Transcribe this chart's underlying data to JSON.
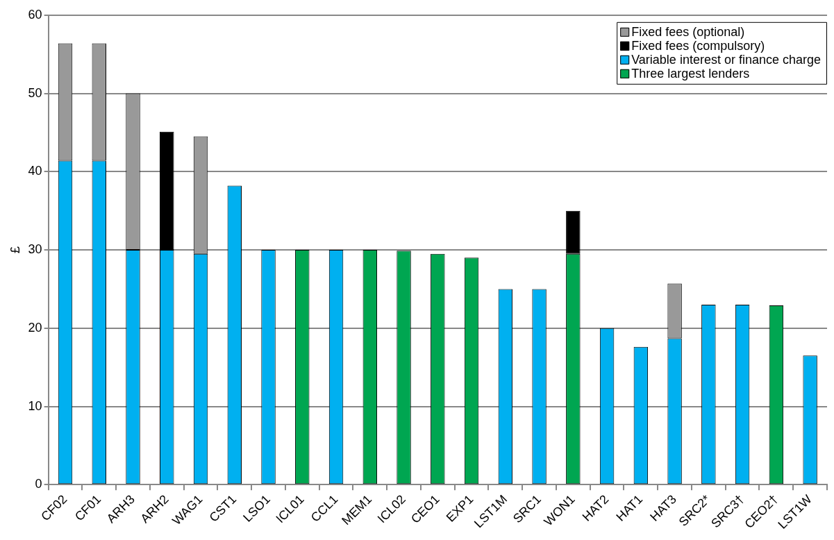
{
  "chart_data": {
    "type": "bar",
    "ylabel": "£",
    "stacked": true,
    "categories": [
      "CF02",
      "CF01",
      "ARH3",
      "ARH2",
      "WAG1",
      "CST1",
      "LSO1",
      "ICL01",
      "CCL1",
      "MEM1",
      "ICL02",
      "CEO1",
      "EXP1",
      "LST1M",
      "SRC1",
      "WON1",
      "HAT2",
      "HAT1",
      "HAT3",
      "SRC2*",
      "SRC3†",
      "CEO2†",
      "LST1W"
    ],
    "series": [
      {
        "name": "Three largest lenders",
        "color": "#00a651",
        "values": [
          null,
          null,
          null,
          null,
          null,
          null,
          null,
          30,
          null,
          30,
          29.9,
          29.5,
          29,
          null,
          null,
          29.5,
          null,
          null,
          null,
          null,
          null,
          22.9,
          null
        ]
      },
      {
        "name": "Variable interest or finance charge",
        "color": "#00b0f0",
        "values": [
          41.4,
          41.4,
          30,
          30,
          29.5,
          38.2,
          30,
          null,
          30,
          null,
          null,
          null,
          null,
          25,
          25,
          null,
          20,
          17.6,
          18.7,
          23,
          23,
          null,
          16.5
        ]
      },
      {
        "name": "Fixed fees (compulsory)",
        "color": "#000000",
        "values": [
          null,
          null,
          null,
          15.1,
          null,
          null,
          null,
          null,
          null,
          null,
          null,
          null,
          null,
          null,
          null,
          5.5,
          null,
          null,
          null,
          null,
          null,
          null,
          null
        ]
      },
      {
        "name": "Fixed fees (optional)",
        "color": "#999999",
        "values": [
          15,
          15,
          20,
          null,
          15,
          null,
          null,
          null,
          null,
          null,
          null,
          null,
          null,
          null,
          null,
          null,
          null,
          null,
          7,
          null,
          null,
          null,
          null
        ]
      }
    ],
    "ylim": [
      0,
      60
    ],
    "yticks": [
      0,
      10,
      20,
      30,
      40,
      50,
      60
    ],
    "grid": "y",
    "legend": "top right"
  }
}
